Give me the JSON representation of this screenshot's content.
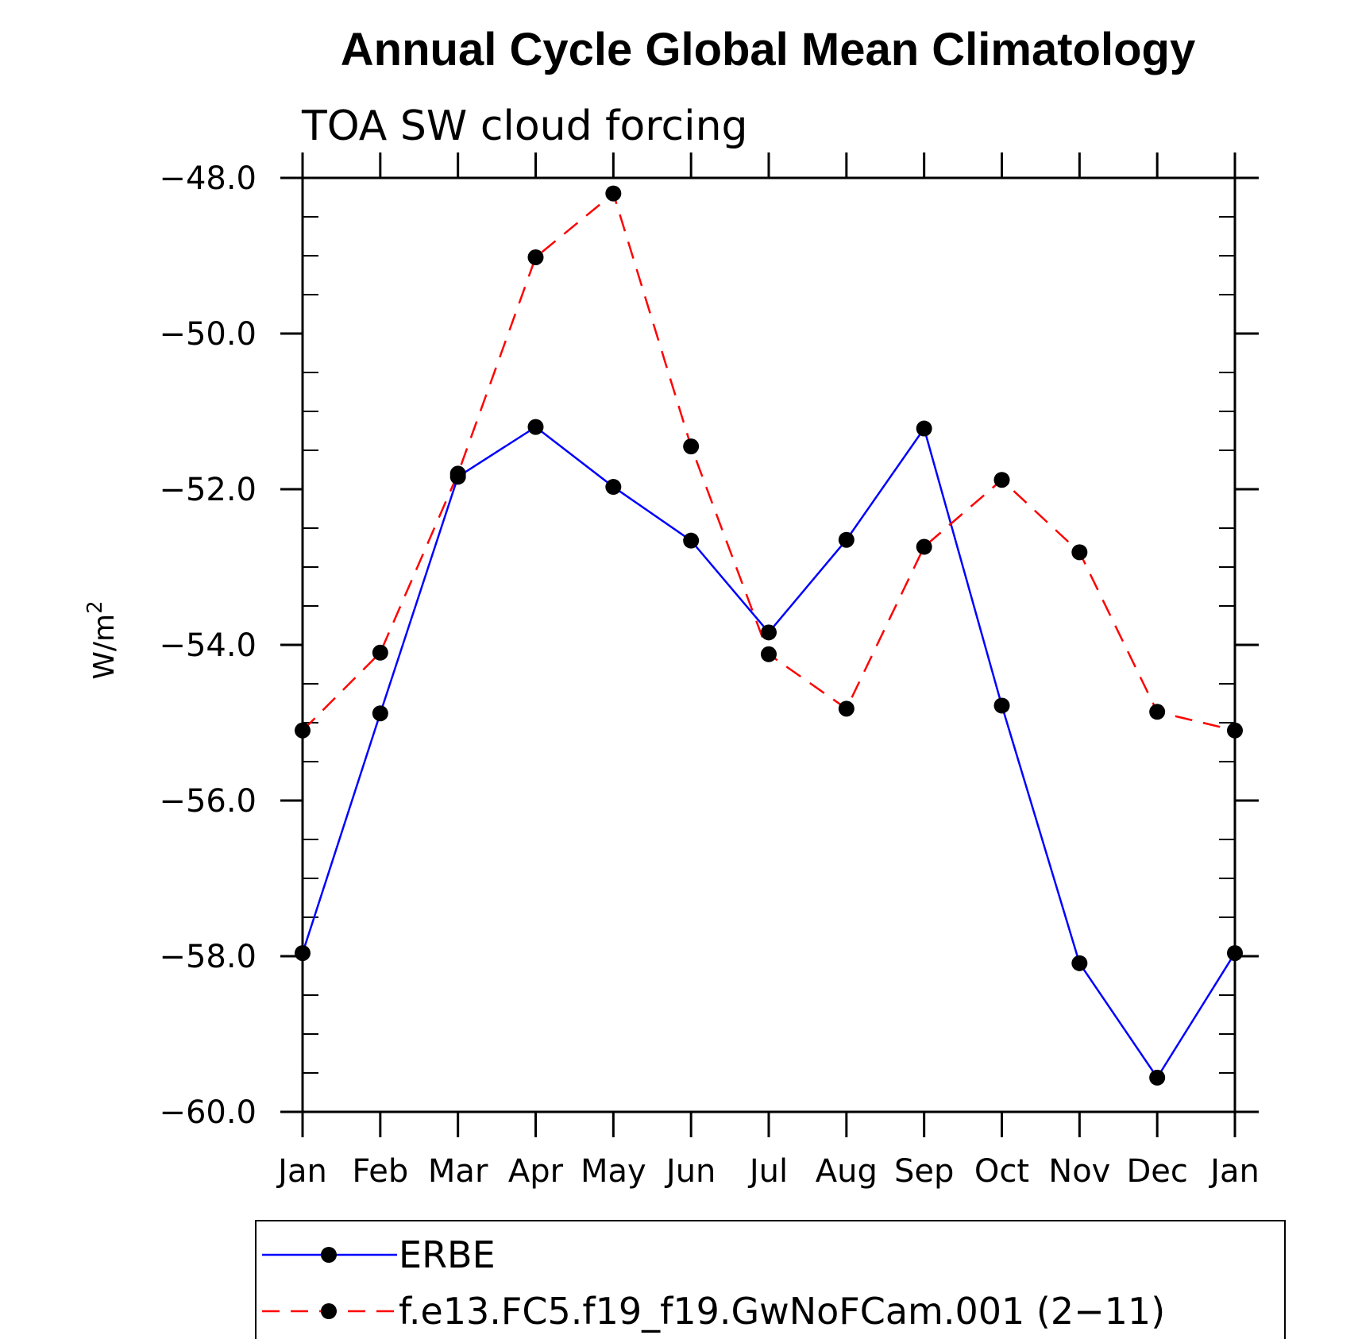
{
  "chart_data": {
    "type": "line",
    "title": "Annual Cycle Global Mean Climatology",
    "subtitle": "TOA SW cloud forcing",
    "ylabel": "W/m",
    "ylabel_superscript": "2",
    "categories": [
      "Jan",
      "Feb",
      "Mar",
      "Apr",
      "May",
      "Jun",
      "Jul",
      "Aug",
      "Sep",
      "Oct",
      "Nov",
      "Dec",
      "Jan"
    ],
    "ylim": [
      -60.0,
      -48.0
    ],
    "yticks": [
      -48.0,
      -50.0,
      -52.0,
      -54.0,
      -56.0,
      -58.0,
      -60.0
    ],
    "ytick_labels": [
      "−48.0",
      "−50.0",
      "−52.0",
      "−54.0",
      "−56.0",
      "−58.0",
      "−60.0"
    ],
    "grid": false,
    "legend_position": "bottom",
    "series": [
      {
        "name": "ERBE",
        "color": "#0000ff",
        "dash": "solid",
        "values": [
          -57.96,
          -54.88,
          -51.84,
          -51.2,
          -51.97,
          -52.66,
          -53.84,
          -52.65,
          -51.22,
          -54.78,
          -58.09,
          -59.56,
          -57.96
        ]
      },
      {
        "name": "f.e13.FC5.f19_f19.GwNoFCam.001 (2−11)",
        "color": "#ff0000",
        "dash": "dashed",
        "values": [
          -55.1,
          -54.1,
          -51.8,
          -49.02,
          -48.2,
          -51.45,
          -54.12,
          -54.82,
          -52.74,
          -51.88,
          -52.81,
          -54.86,
          -55.1
        ]
      }
    ]
  }
}
